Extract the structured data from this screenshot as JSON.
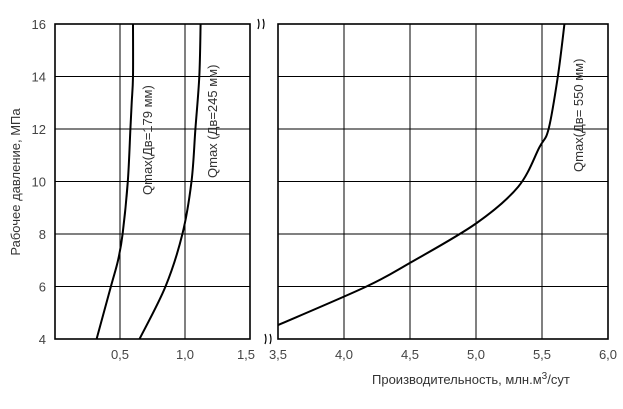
{
  "chart_data": {
    "type": "line",
    "ylabel": "Рабочее давление, МПа",
    "xlabel": "Производительность, млн.м",
    "xlabel_sup": "3",
    "xlabel_tail": "/сут",
    "ylim": [
      4,
      16
    ],
    "yticks": [
      "4",
      "6",
      "8",
      "10",
      "12",
      "14",
      "16"
    ],
    "grid": true,
    "broken_x_axis": true,
    "panels": [
      {
        "xlim": [
          0,
          1.5
        ],
        "xticks": [
          {
            "v": 0.5,
            "t": "0,5"
          },
          {
            "v": 1.0,
            "t": "1,0"
          },
          {
            "v": 1.5,
            "t": "1,5"
          }
        ]
      },
      {
        "xlim": [
          3.5,
          6.0
        ],
        "xticks": [
          {
            "v": 3.5,
            "t": "3,5"
          },
          {
            "v": 4.0,
            "t": "4,0"
          },
          {
            "v": 4.5,
            "t": "4,5"
          },
          {
            "v": 5.0,
            "t": "5,0"
          },
          {
            "v": 5.5,
            "t": "5,5"
          },
          {
            "v": 6.0,
            "t": "6,0"
          }
        ]
      }
    ],
    "series": [
      {
        "name": "Qmax(Дв=179 мм)",
        "panel": 0,
        "x": [
          0.32,
          0.43,
          0.485,
          0.52,
          0.56,
          0.58,
          0.59,
          0.6,
          0.6
        ],
        "y": [
          4,
          6,
          7,
          8,
          10,
          12,
          13,
          14,
          16
        ]
      },
      {
        "name": "Qmax (Дв=245 мм)",
        "panel": 0,
        "x": [
          0.65,
          0.85,
          0.98,
          1.05,
          1.08,
          1.11,
          1.12
        ],
        "y": [
          4,
          6,
          8,
          10,
          12,
          14,
          16
        ]
      },
      {
        "name": "Qmax(Дв= 550 мм)",
        "panel": 1,
        "x": [
          3.5,
          4.17,
          4.5,
          5.0,
          5.32,
          5.48,
          5.55,
          5.62,
          5.67
        ],
        "y": [
          4.53,
          6,
          6.9,
          8.4,
          9.8,
          11.3,
          12,
          14,
          16
        ]
      }
    ]
  }
}
